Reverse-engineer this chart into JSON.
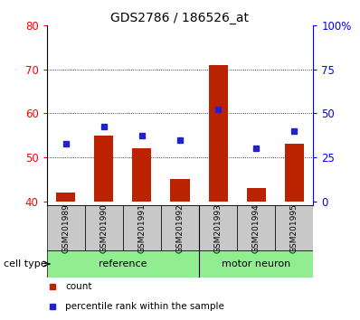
{
  "title": "GDS2786 / 186526_at",
  "samples": [
    "GSM201989",
    "GSM201990",
    "GSM201991",
    "GSM201992",
    "GSM201993",
    "GSM201994",
    "GSM201995"
  ],
  "count_values": [
    42,
    55,
    52,
    45,
    71,
    43,
    53
  ],
  "percentile_values": [
    53,
    57,
    55,
    54,
    61,
    52,
    56
  ],
  "left_ylim": [
    39,
    80
  ],
  "left_yticks": [
    40,
    50,
    60,
    70,
    80
  ],
  "right_yticklabels": [
    "0",
    "25",
    "50",
    "75",
    "100%"
  ],
  "grid_lines": [
    50,
    60,
    70
  ],
  "bar_color": "#BB2200",
  "dot_color": "#2222CC",
  "bar_width": 0.5,
  "ref_color": "#90EE90",
  "sample_box_color": "#C8C8C8",
  "legend_items": [
    {
      "label": "count",
      "color": "#BB2200"
    },
    {
      "label": "percentile rank within the sample",
      "color": "#2222CC"
    }
  ]
}
